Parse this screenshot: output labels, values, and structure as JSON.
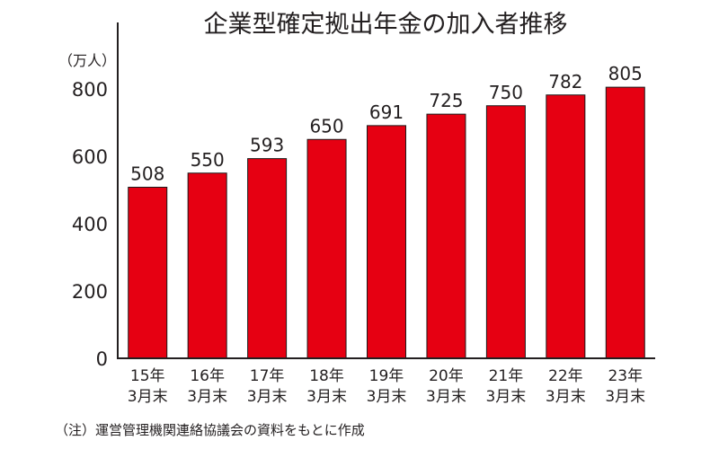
{
  "chart_data": {
    "type": "bar",
    "title": "企業型確定拠出年金の加入者推移",
    "unit_label": "（万人）",
    "categories": [
      [
        "15年",
        "3月末"
      ],
      [
        "16年",
        "3月末"
      ],
      [
        "17年",
        "3月末"
      ],
      [
        "18年",
        "3月末"
      ],
      [
        "19年",
        "3月末"
      ],
      [
        "20年",
        "3月末"
      ],
      [
        "21年",
        "3月末"
      ],
      [
        "22年",
        "3月末"
      ],
      [
        "23年",
        "3月末"
      ]
    ],
    "values": [
      508,
      550,
      593,
      650,
      691,
      725,
      750,
      782,
      805
    ],
    "ylim": [
      0,
      800
    ],
    "yticks": [
      0,
      200,
      400,
      600,
      800
    ],
    "grid": false,
    "legend": "none",
    "bar_color": "#e60012",
    "axis_color": "#231f20",
    "note": "（注）運営管理機関連絡協議会の資料をもとに作成"
  }
}
